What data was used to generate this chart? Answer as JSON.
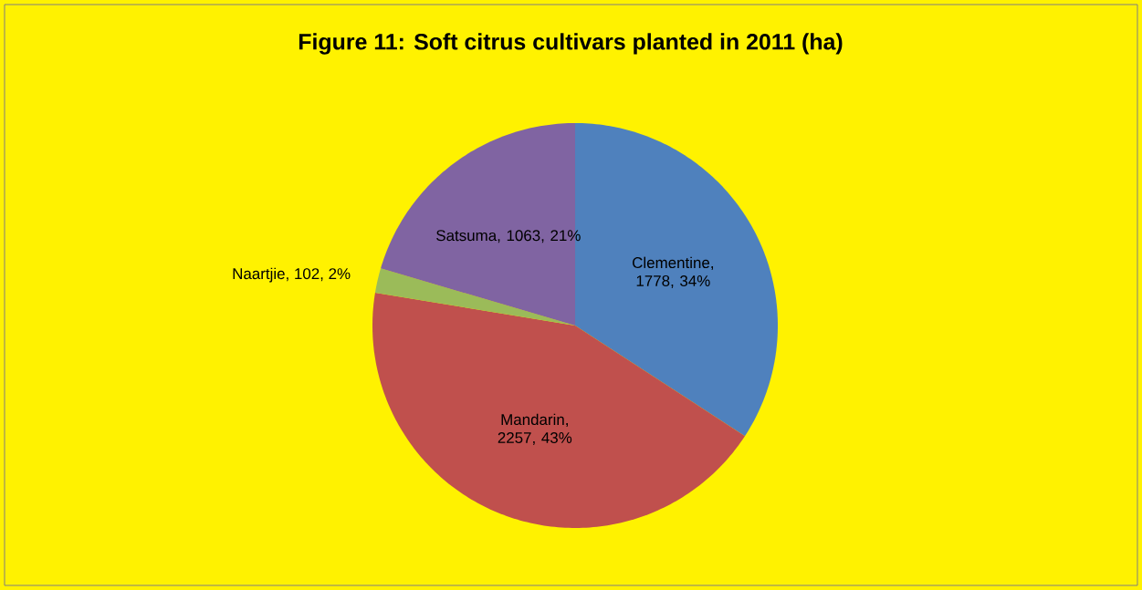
{
  "chart_data": {
    "type": "pie",
    "title": "Figure 11: Soft citrus cultivars planted in 2011 (ha)",
    "categories": [
      "Clementine",
      "Mandarin",
      "Naartjie",
      "Satsuma"
    ],
    "values": [
      1778,
      2257,
      102,
      1063
    ],
    "colors": [
      "#4f81bd",
      "#c0504d",
      "#9bbb59",
      "#8064a2"
    ],
    "value_labels": [
      ", 1778, 34%",
      ", 2257, 43%",
      ", 102, 2%",
      ", 1063, 21%"
    ],
    "legend": false
  }
}
